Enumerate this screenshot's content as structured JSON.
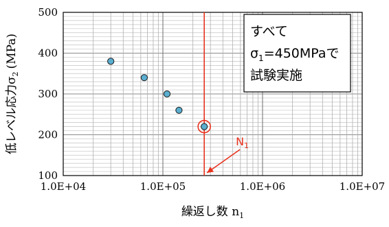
{
  "chart_data": {
    "type": "scatter",
    "title": "",
    "xlabel": "繰返し数 n",
    "xlabel_subscript": "1",
    "ylabel": "低レベル応力σ",
    "ylabel_subscript": "2",
    "ylabel_unit": "(MPa)",
    "x_scale": "log",
    "xlim": [
      10000,
      10000000
    ],
    "ylim": [
      100,
      500
    ],
    "x_ticks": [
      10000,
      100000,
      1000000,
      10000000
    ],
    "x_tick_labels": [
      "1.0E+04",
      "1.0E+05",
      "1.0E+06",
      "1.0E+07"
    ],
    "y_ticks": [
      100,
      200,
      300,
      400,
      500
    ],
    "y_tick_labels": [
      "100",
      "200",
      "300",
      "400",
      "500"
    ],
    "grid": true,
    "marker_color": "#5aaed0",
    "points": [
      {
        "x": 30000,
        "y": 380
      },
      {
        "x": 65000,
        "y": 340
      },
      {
        "x": 110000,
        "y": 300
      },
      {
        "x": 145000,
        "y": 260
      },
      {
        "x": 260000,
        "y": 220
      }
    ],
    "highlighted_point": {
      "x": 260000,
      "y": 220
    },
    "vertical_line_x": 260000,
    "accent_color": "#e8321e",
    "annotation": {
      "label": "N",
      "label_subscript": "1"
    },
    "note": {
      "line1": "すべて",
      "line2_prefix": "σ",
      "line2_subscript": "1",
      "line2_suffix": "=450MPaで",
      "line3": "試験実施"
    }
  }
}
